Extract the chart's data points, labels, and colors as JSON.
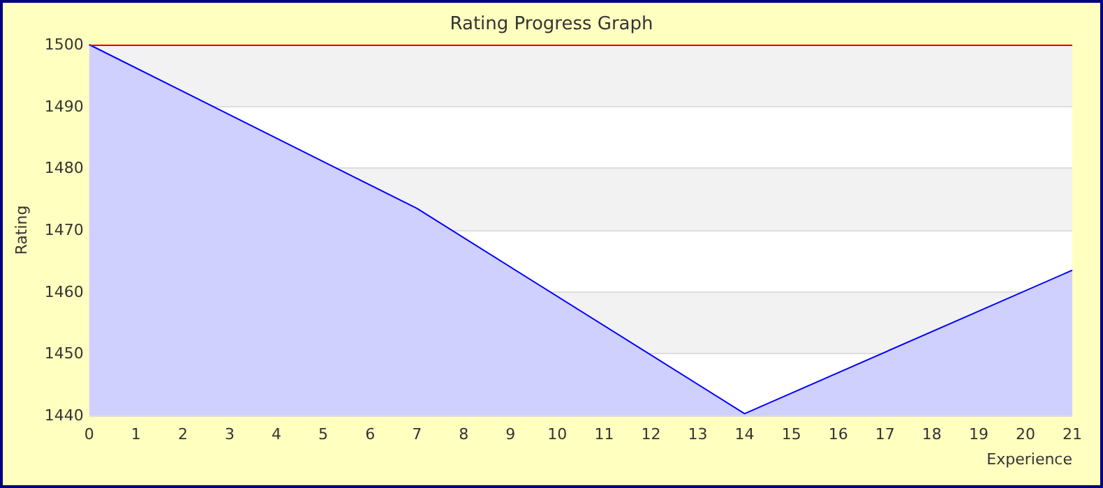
{
  "chart_data": {
    "type": "area",
    "title": "Rating Progress Graph",
    "xlabel": "Experience",
    "ylabel": "Rating",
    "x": [
      0,
      7,
      14,
      21
    ],
    "series": [
      {
        "color": "#0000ff",
        "values": [
          1500,
          1473.5,
          1440.3,
          1463.5
        ]
      }
    ],
    "xlim": [
      0,
      21
    ],
    "xticks": [
      0,
      1,
      2,
      3,
      4,
      5,
      6,
      7,
      8,
      9,
      10,
      11,
      12,
      13,
      14,
      15,
      16,
      17,
      18,
      19,
      20,
      21
    ],
    "ylim": [
      1440,
      1500
    ],
    "yticks": [
      1440,
      1450,
      1460,
      1470,
      1480,
      1490,
      1500
    ],
    "ref_lines": [
      {
        "axis": "y",
        "value": 1500,
        "color": "#e00000"
      }
    ],
    "grid": "y",
    "marker": "none",
    "line_style": "solid"
  }
}
